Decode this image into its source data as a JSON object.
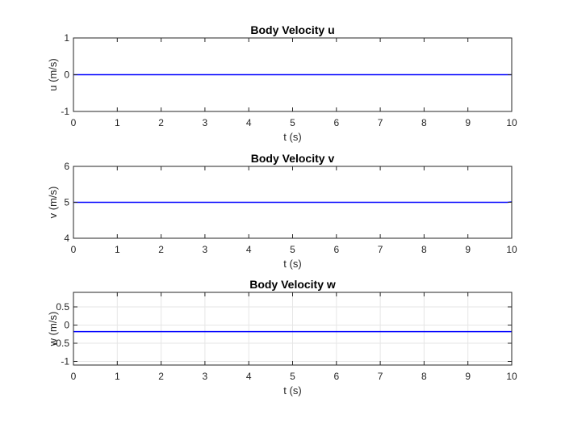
{
  "chart_data": [
    {
      "type": "line",
      "title": "Body Velocity u",
      "xlabel": "t (s)",
      "ylabel": "u (m/s)",
      "xlim": [
        0,
        10
      ],
      "ylim": [
        -1,
        1
      ],
      "grid": false,
      "x_ticks": [
        0,
        1,
        2,
        3,
        4,
        5,
        6,
        7,
        8,
        9,
        10
      ],
      "x_tick_labels": [
        "0",
        "1",
        "2",
        "3",
        "4",
        "5",
        "6",
        "7",
        "8",
        "9",
        "10"
      ],
      "y_ticks": [
        -1,
        0,
        1
      ],
      "y_tick_labels": [
        "-1",
        "0",
        "1"
      ],
      "series": [
        {
          "name": "u",
          "color": "#0000ff",
          "x": [
            0,
            10
          ],
          "y": [
            0,
            0
          ]
        }
      ]
    },
    {
      "type": "line",
      "title": "Body Velocity v",
      "xlabel": "t (s)",
      "ylabel": "v (m/s)",
      "xlim": [
        0,
        10
      ],
      "ylim": [
        4,
        6
      ],
      "grid": false,
      "x_ticks": [
        0,
        1,
        2,
        3,
        4,
        5,
        6,
        7,
        8,
        9,
        10
      ],
      "x_tick_labels": [
        "0",
        "1",
        "2",
        "3",
        "4",
        "5",
        "6",
        "7",
        "8",
        "9",
        "10"
      ],
      "y_ticks": [
        4,
        5,
        6
      ],
      "y_tick_labels": [
        "4",
        "5",
        "6"
      ],
      "series": [
        {
          "name": "v",
          "color": "#0000ff",
          "x": [
            0,
            9.9,
            10
          ],
          "y": [
            5,
            5,
            5.01
          ]
        }
      ]
    },
    {
      "type": "line",
      "title": "Body Velocity w",
      "xlabel": "t (s)",
      "ylabel": "w (m/s)",
      "xlim": [
        0,
        10
      ],
      "ylim": [
        -1.1,
        0.9
      ],
      "grid": true,
      "x_ticks": [
        0,
        1,
        2,
        3,
        4,
        5,
        6,
        7,
        8,
        9,
        10
      ],
      "x_tick_labels": [
        "0",
        "1",
        "2",
        "3",
        "4",
        "5",
        "6",
        "7",
        "8",
        "9",
        "10"
      ],
      "y_ticks": [
        -1,
        -0.5,
        0,
        0.5
      ],
      "y_tick_labels": [
        "-1",
        "-0.5",
        "0",
        "0.5"
      ],
      "series": [
        {
          "name": "w",
          "color": "#0000ff",
          "x": [
            0,
            10
          ],
          "y": [
            -0.18,
            -0.18
          ]
        }
      ]
    }
  ]
}
